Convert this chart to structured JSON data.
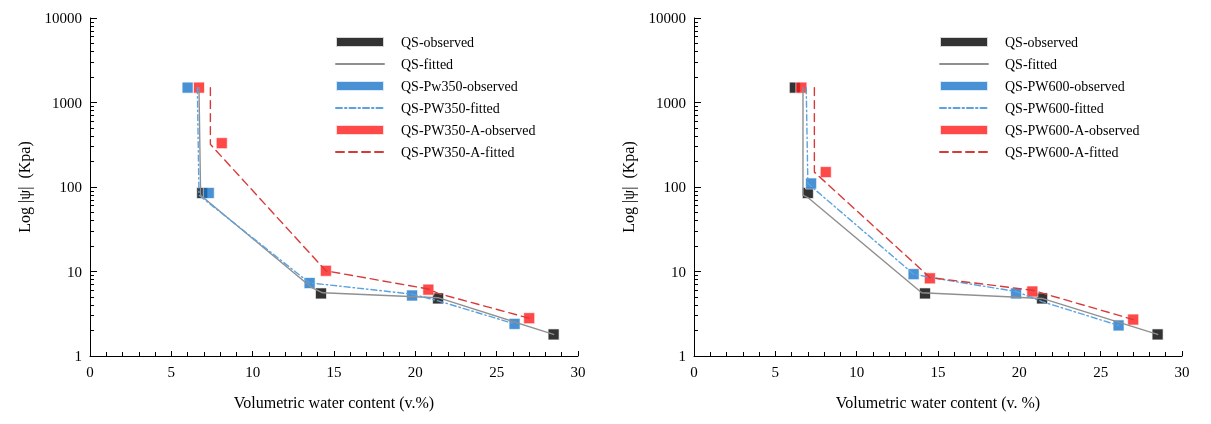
{
  "chart_data": [
    {
      "type": "scatter",
      "xlabel": "Volumetric water content (v.%)",
      "ylabel": "Log |ψ|  (Kpa)",
      "log": "y",
      "xlim": [
        0,
        30
      ],
      "xticks": [
        0,
        5,
        10,
        15,
        20,
        25,
        30
      ],
      "ylim": [
        1,
        10000
      ],
      "yticks": [
        1,
        10,
        100,
        1000,
        10000
      ],
      "grid": false,
      "legend": "top right",
      "series": [
        {
          "name": "QS-observed",
          "marker": "square",
          "color": "#000000",
          "x": [
            6.9,
            14.2,
            21.4,
            28.5
          ],
          "values": [
            85,
            5.5,
            4.8,
            1.8
          ]
        },
        {
          "name": "QS-fitted",
          "type": "line",
          "marker": "none",
          "line_style": "solid",
          "color": "#909090",
          "x": [
            6.7,
            6.8,
            13.6,
            14.3,
            21.4,
            28.5
          ],
          "values": [
            1500,
            80,
            6.5,
            5.6,
            4.9,
            1.8
          ]
        },
        {
          "name": "QS-Pw350-observed",
          "marker": "square",
          "color": "#1a75c9",
          "x": [
            6.0,
            7.3,
            13.5,
            19.8,
            26.1
          ],
          "values": [
            1500,
            85,
            7.3,
            5.2,
            2.4
          ]
        },
        {
          "name": "QS-PW350-fitted",
          "type": "line",
          "marker": "none",
          "line_style": "dotted",
          "color": "#5ba3e0",
          "x": [
            6.6,
            6.7,
            13.5,
            14.5,
            19.8,
            21.4,
            26.1
          ],
          "values": [
            1500,
            80,
            7.3,
            7.0,
            5.4,
            4.5,
            2.4
          ]
        },
        {
          "name": "QS-PW350-A-observed",
          "marker": "square",
          "color": "#ff1a1a",
          "x": [
            6.7,
            8.1,
            14.5,
            20.8,
            27.0
          ],
          "values": [
            1500,
            330,
            10.2,
            6.1,
            2.8
          ]
        },
        {
          "name": "QS-PW350-A-fitted",
          "type": "line",
          "marker": "none",
          "line_style": "dashed",
          "color": "#d83a3a",
          "x": [
            7.4,
            7.4,
            14.5,
            20.8,
            21.4,
            27.0
          ],
          "values": [
            1500,
            320,
            10.2,
            6.2,
            5.5,
            2.8
          ]
        }
      ]
    },
    {
      "type": "scatter",
      "xlabel": "Volumetric water content (v. %)",
      "ylabel": "Log |ψ|  (Kpa)",
      "log": "y",
      "xlim": [
        0,
        30
      ],
      "xticks": [
        0,
        5,
        10,
        15,
        20,
        25,
        30
      ],
      "ylim": [
        1,
        10000
      ],
      "yticks": [
        1,
        10,
        100,
        1000,
        10000
      ],
      "grid": false,
      "legend": "top right",
      "series": [
        {
          "name": "QS-observed",
          "marker": "square",
          "color": "#000000",
          "x": [
            6.2,
            7.0,
            14.2,
            21.4,
            28.5
          ],
          "values": [
            1500,
            85,
            5.5,
            4.8,
            1.8
          ]
        },
        {
          "name": "QS-fitted",
          "type": "line",
          "marker": "none",
          "line_style": "solid",
          "color": "#909090",
          "x": [
            6.7,
            6.7,
            7.0,
            14.0,
            21.4,
            28.5
          ],
          "values": [
            1500,
            80,
            75,
            5.6,
            4.8,
            1.8
          ]
        },
        {
          "name": "QS-PW600-observed",
          "marker": "square",
          "color": "#1a75c9",
          "x": [
            7.2,
            13.5,
            19.8,
            26.1
          ],
          "values": [
            110,
            9.3,
            5.5,
            2.3
          ]
        },
        {
          "name": "QS-PW600-fitted",
          "type": "line",
          "marker": "none",
          "line_style": "dotted",
          "color": "#5ba3e0",
          "x": [
            6.9,
            7.0,
            13.5,
            15.0,
            19.8,
            21.4,
            26.1
          ],
          "values": [
            1500,
            110,
            9.3,
            8.2,
            5.8,
            4.4,
            2.3
          ]
        },
        {
          "name": "QS-PW600-A-observed",
          "marker": "square",
          "color": "#ff1a1a",
          "x": [
            6.6,
            8.1,
            14.5,
            20.8,
            27.0
          ],
          "values": [
            1500,
            150,
            8.3,
            5.8,
            2.7
          ]
        },
        {
          "name": "QS-PW600-A-fitted",
          "type": "line",
          "marker": "none",
          "line_style": "dashed",
          "color": "#d83a3a",
          "x": [
            7.4,
            7.4,
            14.5,
            20.8,
            27.0
          ],
          "values": [
            1500,
            150,
            8.5,
            6.0,
            2.7
          ]
        }
      ]
    }
  ]
}
